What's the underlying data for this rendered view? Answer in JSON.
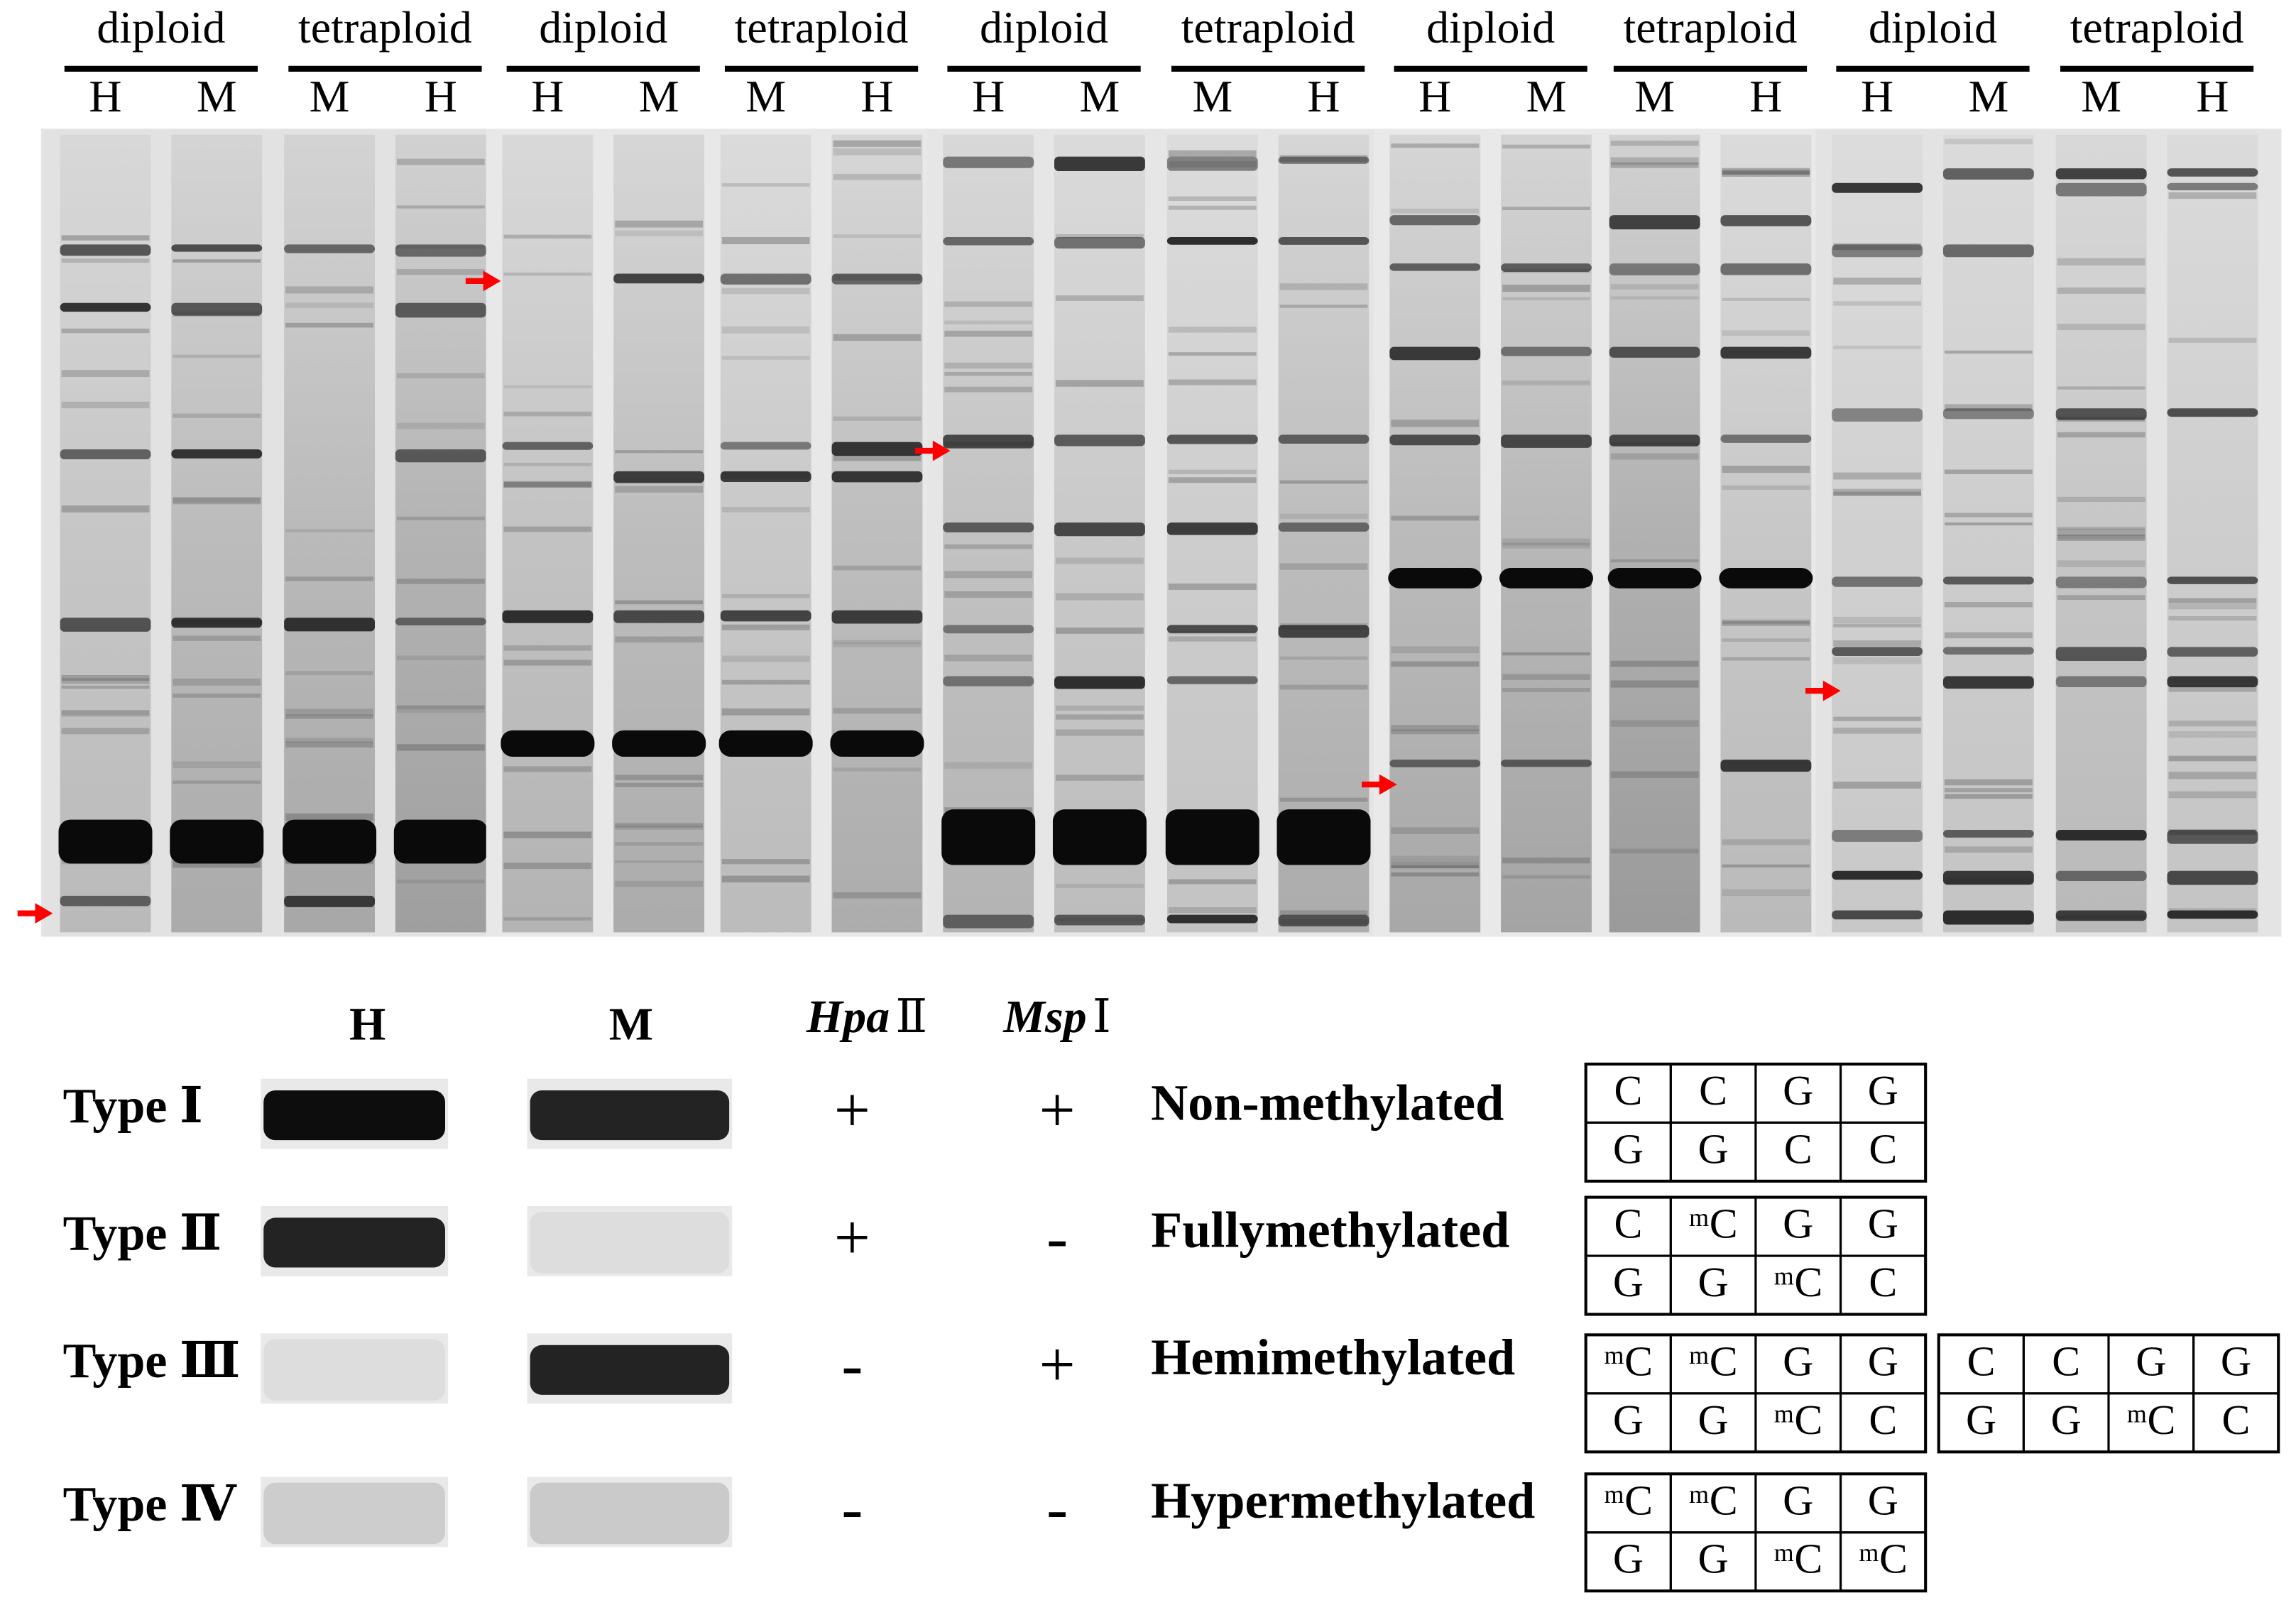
{
  "gel": {
    "panels": [
      {
        "label": "diploid",
        "lanes": [
          "H",
          "M"
        ]
      },
      {
        "label": "tetraploid",
        "lanes": [
          "M",
          "H"
        ]
      },
      {
        "label": "diploid",
        "lanes": [
          "H",
          "M"
        ]
      },
      {
        "label": "tetraploid",
        "lanes": [
          "M",
          "H"
        ]
      },
      {
        "label": "diploid",
        "lanes": [
          "H",
          "M"
        ]
      },
      {
        "label": "tetraploid",
        "lanes": [
          "M",
          "H"
        ]
      },
      {
        "label": "diploid",
        "lanes": [
          "H",
          "M"
        ]
      },
      {
        "label": "tetraploid",
        "lanes": [
          "M",
          "H"
        ]
      },
      {
        "label": "diploid",
        "lanes": [
          "H",
          "M"
        ]
      },
      {
        "label": "tetraploid",
        "lanes": [
          "M",
          "H"
        ]
      }
    ]
  },
  "legend": {
    "headers": {
      "h": "H",
      "m": "M",
      "hpa": {
        "italic": "Hpa",
        "roman": "Ⅱ"
      },
      "msp": {
        "italic": "Msp",
        "roman": "Ⅰ"
      }
    },
    "rows": [
      {
        "type": "Type Ⅰ",
        "hpa": "+",
        "msp": "+",
        "status": "Non-methylated",
        "sites": [
          [
            [
              "C",
              "C",
              "G",
              "G"
            ],
            [
              "G",
              "G",
              "C",
              "C"
            ]
          ]
        ]
      },
      {
        "type": "Type Ⅱ",
        "hpa": "+",
        "msp": "-",
        "status": "Fullymethylated",
        "sites": [
          [
            [
              "C",
              "ᵐC",
              "G",
              "G"
            ],
            [
              "G",
              "G",
              "ᵐC",
              "C"
            ]
          ]
        ]
      },
      {
        "type": "Type Ⅲ",
        "hpa": "-",
        "msp": "+",
        "status": "Hemimethylated",
        "sites": [
          [
            [
              "ᵐC",
              "ᵐC",
              "G",
              "G"
            ],
            [
              "G",
              "G",
              "ᵐC",
              "C"
            ]
          ],
          [
            [
              "C",
              "C",
              "G",
              "G"
            ],
            [
              "G",
              "G",
              "ᵐC",
              "C"
            ]
          ]
        ]
      },
      {
        "type": "Type Ⅳ",
        "hpa": "-",
        "msp": "-",
        "status": "Hypermethylated",
        "sites": [
          [
            [
              "ᵐC",
              "ᵐC",
              "G",
              "G"
            ],
            [
              "G",
              "G",
              "ᵐC",
              "ᵐC"
            ]
          ]
        ]
      }
    ]
  }
}
